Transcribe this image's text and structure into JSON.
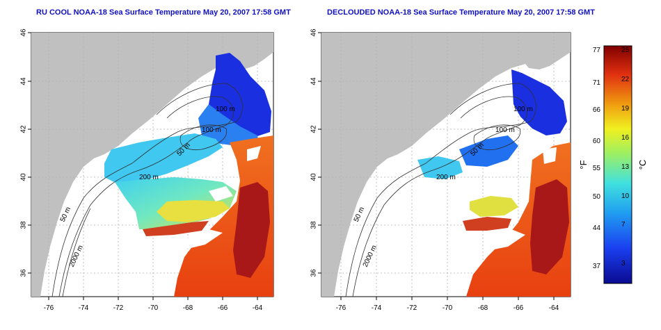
{
  "panels": [
    {
      "id": "left",
      "title": "RU COOL NOAA-18 Sea Surface Temperature May 20, 2007 17:58 GMT",
      "contour_labels": [
        "100 m",
        "100 m",
        "50 m",
        "200 m",
        "50 m",
        "2000 m"
      ]
    },
    {
      "id": "right",
      "title": "DECLOUDED NOAA-18 Sea Surface Temperature May 20, 2007 17:58 GMT",
      "contour_labels": [
        "100 m",
        "100 m",
        "50 m",
        "200 m",
        "50 m",
        "2000 m"
      ]
    }
  ],
  "axes": {
    "x_ticks": [
      "-76",
      "-74",
      "-72",
      "-70",
      "-68",
      "-66",
      "-64"
    ],
    "y_ticks": [
      "46",
      "44",
      "42",
      "40",
      "38",
      "36"
    ]
  },
  "colorbar": {
    "unit_left": "°F",
    "unit_right": "°C",
    "f_ticks": [
      "77",
      "71",
      "66",
      "60",
      "55",
      "50",
      "44",
      "37"
    ],
    "c_ticks": [
      "25",
      "22",
      "19",
      "16",
      "13",
      "10",
      "7",
      "3"
    ]
  },
  "colors": {
    "land": "#c0c0c0",
    "cold": "#1a2fd0",
    "cyan": "#40d8f0",
    "yellow": "#e8e040",
    "orange": "#f06020",
    "hot": "#a01010",
    "title": "#1010c0"
  }
}
